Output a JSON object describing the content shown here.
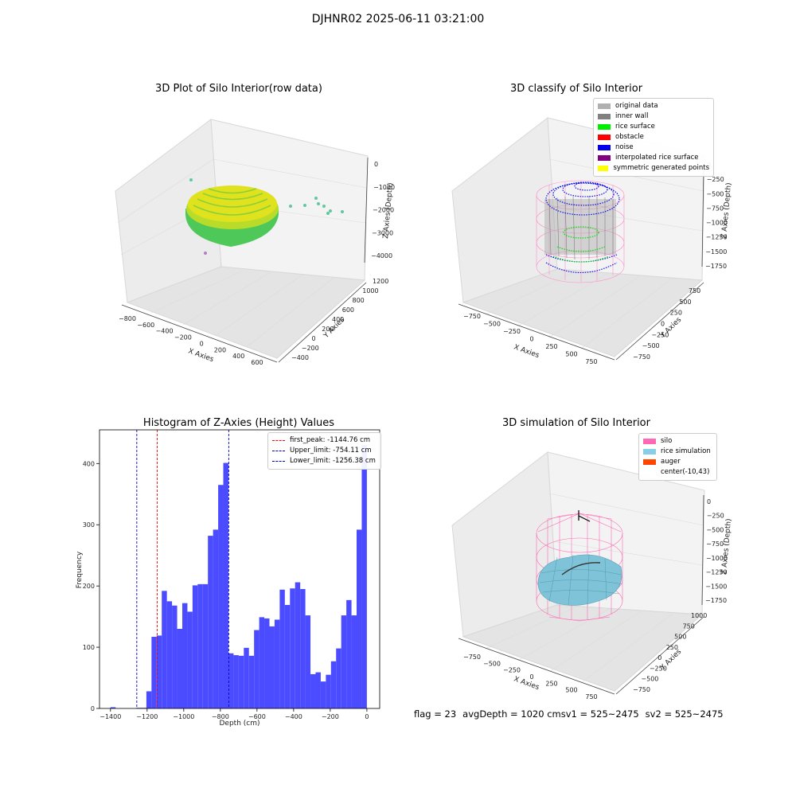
{
  "figure": {
    "suptitle": "DJHNR02 2025-06-11 03:21:00",
    "status": {
      "flag": "flag = 23",
      "avg_depth": "avgDepth = 1020 cm",
      "sv1": "sv1 = 525~2475",
      "sv2": "sv2 = 525~2475"
    }
  },
  "chart_data": [
    {
      "type": "scatter3d",
      "title": "3D Plot of Silo Interior(row data)",
      "xlabel": "X Axies",
      "ylabel": "Y Axies",
      "zlabel": "Z Axies (Depth)",
      "xticks": [
        "−800",
        "−600",
        "−400",
        "−200",
        "0",
        "200",
        "400",
        "600"
      ],
      "yticks": [
        "−400",
        "−200",
        "0",
        "200",
        "400",
        "600",
        "800",
        "1000",
        "1200"
      ],
      "zticks": [
        "0",
        "−1000",
        "−2000",
        "−3000",
        "−4000"
      ],
      "colors": {
        "surface_top": "#e8e21c",
        "surface_bottom": "#5fcf5a",
        "outlier": "#6ccf9a"
      }
    },
    {
      "type": "scatter3d",
      "title": "3D classify of Silo Interior",
      "xlabel": "X Axies",
      "ylabel": "Y Axies",
      "zlabel": "Z Axies (Depth)",
      "xticks": [
        "−750",
        "−500",
        "−250",
        "0",
        "250",
        "500",
        "750"
      ],
      "yticks": [
        "−750",
        "−500",
        "−250",
        "0",
        "250",
        "500",
        "750"
      ],
      "zticks": [
        "0",
        "−250",
        "−500",
        "−750",
        "−1000",
        "−1250",
        "−1500",
        "−1750"
      ],
      "legend": [
        {
          "label": "original data",
          "color": "#b0b0b0"
        },
        {
          "label": "inner wall",
          "color": "#808080"
        },
        {
          "label": "rice surface",
          "color": "#00ee00"
        },
        {
          "label": "obstacle",
          "color": "#ff0000"
        },
        {
          "label": "noise",
          "color": "#0000ee"
        },
        {
          "label": "interpolated rice surface",
          "color": "#800080"
        },
        {
          "label": "symmetric generated points",
          "color": "#ffff00"
        }
      ]
    },
    {
      "type": "bar",
      "title": "Histogram of Z-Axies (Height) Values",
      "xlabel": "Depth (cm)",
      "ylabel": "Frequency",
      "xlim": [
        -1460,
        70
      ],
      "ylim": [
        0,
        455
      ],
      "xticks": [
        -1400,
        -1200,
        -1000,
        -800,
        -600,
        -400,
        -200,
        0
      ],
      "yticks": [
        0,
        100,
        200,
        300,
        400
      ],
      "bin_width": 28,
      "bin_start": -1400,
      "values": [
        2,
        0,
        0,
        0,
        0,
        1,
        1,
        28,
        117,
        119,
        192,
        175,
        168,
        130,
        172,
        158,
        201,
        203,
        203,
        282,
        292,
        365,
        401,
        90,
        87,
        86,
        99,
        86,
        128,
        149,
        147,
        134,
        145,
        194,
        169,
        196,
        206,
        195,
        152,
        56,
        59,
        44,
        55,
        77,
        98,
        152,
        177,
        152,
        292,
        430
      ],
      "bar_color": "#4b4bff",
      "lines": [
        {
          "label": "first_peak: -1144.76 cm",
          "value": -1144.76,
          "color": "#ff0000"
        },
        {
          "label": "Upper_limit: -754.11 cm",
          "value": -754.11,
          "color": "#0000cc"
        },
        {
          "label": "Lower_limit: -1256.38 cm",
          "value": -1256.38,
          "color": "#0000cc"
        }
      ]
    },
    {
      "type": "surface3d",
      "title": "3D simulation of Silo Interior",
      "xlabel": "X Axies",
      "ylabel": "Y Axies",
      "zlabel": "Z Axies (Depth)",
      "xticks": [
        "−750",
        "−500",
        "−250",
        "0",
        "250",
        "500",
        "750"
      ],
      "yticks": [
        "−750",
        "−500",
        "−250",
        "0",
        "250",
        "500",
        "750",
        "1000"
      ],
      "zticks": [
        "0",
        "−250",
        "−500",
        "−750",
        "−1000",
        "−1250",
        "−1500",
        "−1750"
      ],
      "legend": [
        {
          "label": "silo",
          "color": "#ff69b4"
        },
        {
          "label": "rice simulation",
          "color": "#87ceeb"
        },
        {
          "label": "auger",
          "color": "#ff4500"
        },
        {
          "label": "center(-10,43)",
          "color": "#ffffff"
        }
      ]
    }
  ]
}
